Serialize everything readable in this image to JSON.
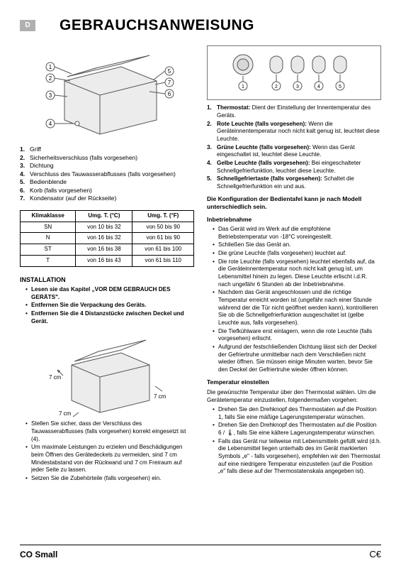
{
  "lang_badge": "D",
  "title": "GEBRAUCHSANWEISUNG",
  "freezer_parts": [
    {
      "n": "1.",
      "label": "Griff"
    },
    {
      "n": "2.",
      "label": "Sicherheitsverschluss (falls vorgesehen)"
    },
    {
      "n": "3.",
      "label": "Dichtung"
    },
    {
      "n": "4.",
      "label": "Verschluss des Tauwasserabflusses (falls vorgesehen)"
    },
    {
      "n": "5.",
      "label": "Bedienblende"
    },
    {
      "n": "6.",
      "label": "Korb (falls vorgesehen)"
    },
    {
      "n": "7.",
      "label": "Kondensator (auf der Rückseite)"
    }
  ],
  "klima_table": {
    "headers": [
      "Klimaklasse",
      "Umg. T. (°C)",
      "Umg. T. (°F)"
    ],
    "rows": [
      [
        "SN",
        "von 10 bis 32",
        "von 50 bis 90"
      ],
      [
        "N",
        "von 16 bis 32",
        "von 61 bis 90"
      ],
      [
        "ST",
        "von 16 bis 38",
        "von 61 bis 100"
      ],
      [
        "T",
        "von 16 bis 43",
        "von 61 bis 110"
      ]
    ]
  },
  "install_head": "INSTALLATION",
  "install_items": [
    {
      "bold": true,
      "text": "Lesen sie das Kapitel „VOR DEM GEBRAUCH DES GERÄTS\"."
    },
    {
      "bold": true,
      "text": "Entfernen Sie die Verpackung des Geräts."
    },
    {
      "bold": true,
      "text": "Entfernen Sie die 4 Distanzstücke zwischen Deckel und Gerät."
    }
  ],
  "install_after": [
    "Stellen Sie sicher, dass der Verschluss des Tauwasserabflusses (falls vorgesehen) korrekt eingesetzt ist (4).",
    "Um maximale Leistungen zu erzielen und Beschädigungen beim Öffnen des Gerätedeckels zu vermeiden, sind 7 cm Mindestabstand von der Rückwand und 7 cm Freiraum auf jeder Seite zu lassen.",
    "Setzen Sie die Zubehörteile (falls vorgesehen) ein."
  ],
  "panel_items": [
    {
      "n": "1.",
      "lead": "Thermostat:",
      "rest": " Dient der Einstellung der Innentemperatur des Geräts."
    },
    {
      "n": "2.",
      "lead": "Rote Leuchte (falls vorgesehen):",
      "rest": " Wenn die Geräteinnentemperatur noch nicht kalt genug ist, leuchtet diese Leuchte."
    },
    {
      "n": "3.",
      "lead": "Grüne Leuchte (falls vorgesehen):",
      "rest": " Wenn das Gerät eingeschaltet ist, leuchtet diese Leuchte."
    },
    {
      "n": "4.",
      "lead": "Gelbe Leuchte (falls vorgesehen):",
      "rest": " Bei eingeschalteter Schnellgefrierfunktion, leuchtet diese Leuchte."
    },
    {
      "n": "5.",
      "lead": "Schnellgefriertaste (falls vorgesehen):",
      "rest": " Schaltet die Schnellgefrierfunktion ein und aus."
    }
  ],
  "config_note": "Die Konfiguration der Bedientafel kann je nach Modell unterschiedlich sein.",
  "inbetrieb_head": "Inbetriebnahme",
  "inbetrieb_items": [
    "Das Gerät wird im Werk auf die empfohlene Betriebstemperatur von -18°C voreingestellt.",
    "Schließen Sie das Gerät an.",
    "Die grüne Leuchte (falls vorgesehen) leuchtet auf.",
    "Die rote Leuchte (falls vorgesehen) leuchtet ebenfalls auf, da die Geräteinnentemperatur noch nicht kalt genug ist, um Lebensmittel hinein zu legen. Diese Leuchte erlischt i.d.R. nach ungefähr 6 Stunden ab der Inbetriebnahme.",
    "Nachdem das Gerät angeschlossen und die richtige Temperatur erreicht worden ist (ungefähr nach einer Stunde während der die Tür nicht geöffnet werden kann), kontrollieren Sie ob die Schnellgefrierfunktion ausgeschaltet ist (gelbe Leuchte aus, falls vorgesehen).",
    "Die Tiefkühlware erst einlagern, wenn die rote Leuchte (falls vorgesehen) erlischt.",
    "Aufgrund der festschließenden Dichtung lässt sich der Deckel der Gefriertruhe unmittelbar nach dem Verschließen nicht wieder öffnen. Sie müssen einige Minuten warten, bevor Sie den Deckel der Gefriertruhe wieder öffnen können."
  ],
  "temp_head": "Temperatur einstellen",
  "temp_intro": "Die gewünschte Temperatur über den Thermostat wählen. Um die Gerätetemperatur einzustellen, folgendermaßen vorgehen:",
  "temp_items": [
    "Drehen Sie den Drehknopf des Thermostaten auf die Position 1, falls Sie eine mäßige Lagerungstemperatur wünschen.",
    "Drehen Sie den Drehknopf des Thermostaten auf die Position 6 / 🌡, falls Sie eine kältere Lagerungstemperatur wünschen.",
    "Falls das Gerät nur teilweise mit Lebensmitteln gefüllt wird (d.h. die Lebensmittel liegen unterhalb des im Gerät markierten Symbols „e\" - falls vorgesehen), empfehlen wir den Thermostat auf eine niedrigere Temperatur einzustellen (auf die Position „e\" falls diese auf der Thermostatenskala angegeben ist)."
  ],
  "footer_model": "CO Small",
  "diagram_labels": {
    "callouts": [
      "1",
      "2",
      "3",
      "4",
      "5",
      "6",
      "7"
    ],
    "clearance": "7 cm",
    "panel_nums": [
      "1",
      "2",
      "3",
      "4",
      "5"
    ]
  },
  "colors": {
    "badge_bg": "#b0b0b0",
    "stroke": "#444",
    "fill": "#ececec"
  }
}
